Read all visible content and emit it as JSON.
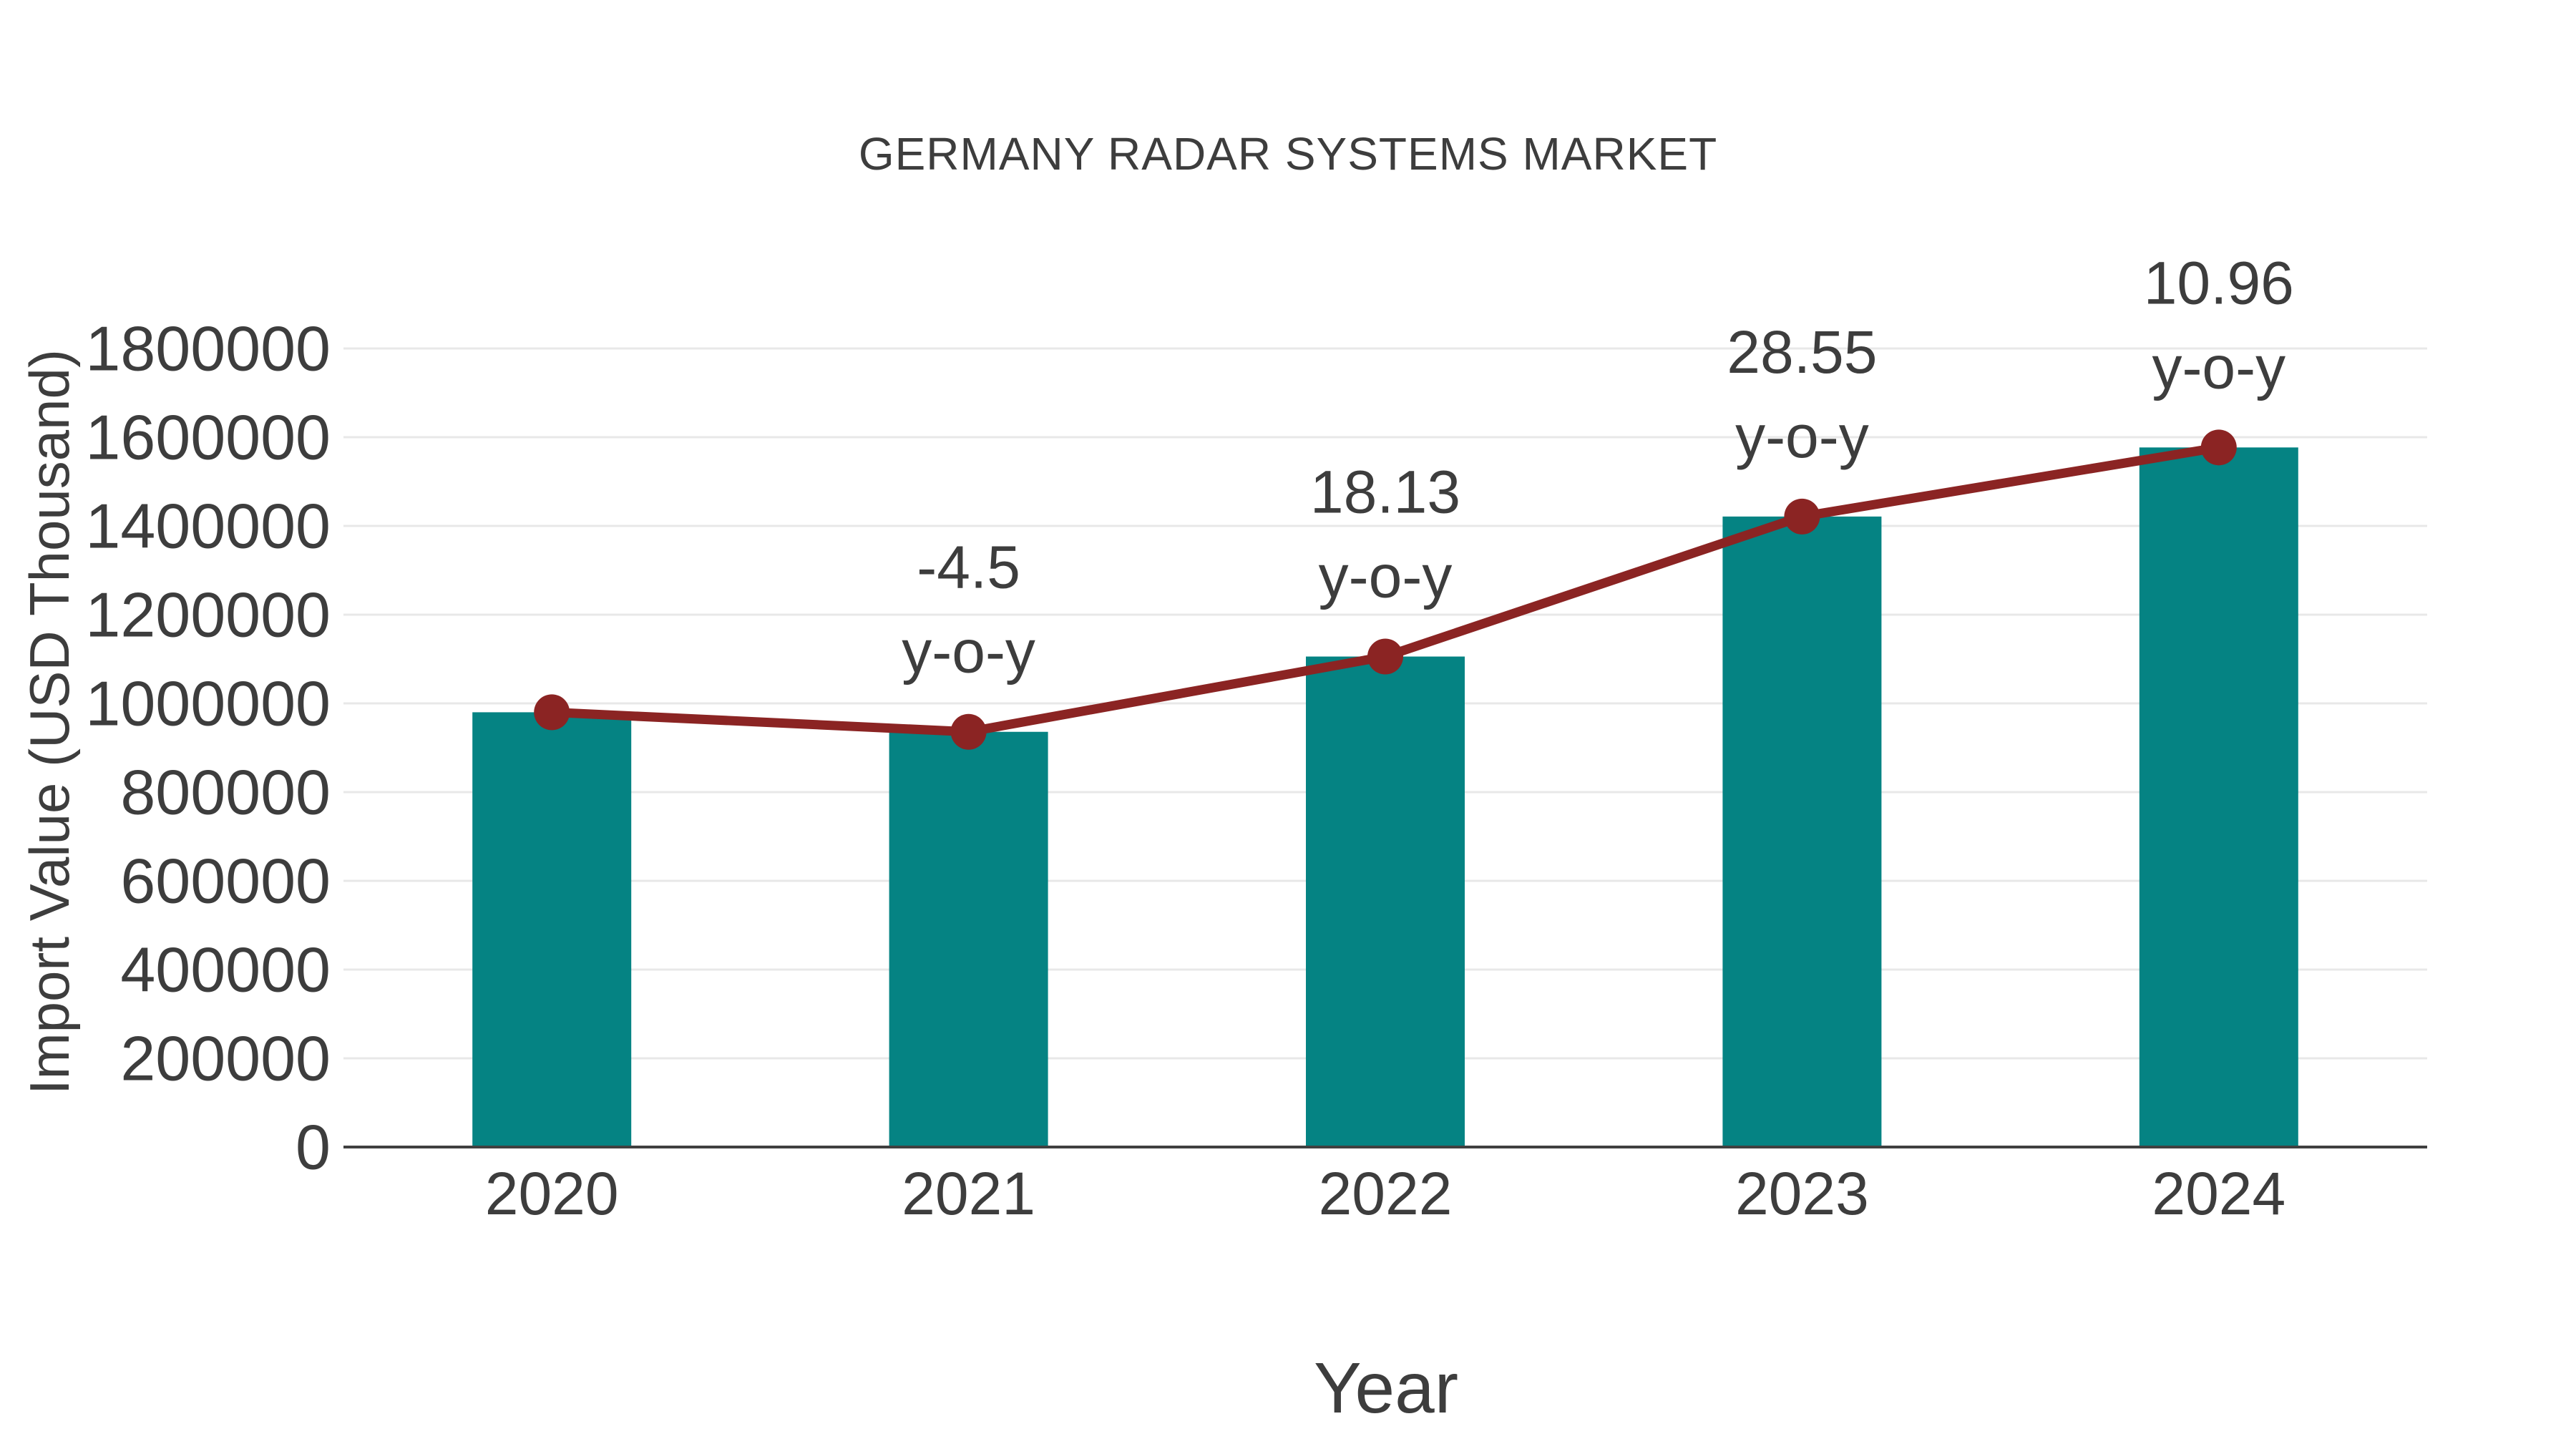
{
  "chart_data": {
    "type": "bar",
    "title": "GERMANY RADAR SYSTEMS MARKET",
    "xlabel": "Year",
    "ylabel": "Import Value (USD Thousand)",
    "categories": [
      "2020",
      "2021",
      "2022",
      "2023",
      "2024"
    ],
    "values": [
      980000,
      935900,
      1105600,
      1421200,
      1576900
    ],
    "line_overlay": {
      "name": "trend-line-with-markers",
      "values": [
        980000,
        935900,
        1105600,
        1421200,
        1576900
      ]
    },
    "yoy_labels": [
      "",
      "-4.5",
      "18.13",
      "28.55",
      "10.96"
    ],
    "yoy_suffix": "y-o-y",
    "ylim": [
      0,
      1800000
    ],
    "yticks": [
      0,
      200000,
      400000,
      600000,
      800000,
      1000000,
      1200000,
      1400000,
      1600000,
      1800000
    ],
    "grid": true,
    "legend": "none",
    "colors": {
      "bar": "#058383",
      "line": "#8b2423",
      "marker": "#8b2423",
      "text": "#3d3d3d",
      "grid": "#e8e8e8",
      "axis": "#404040",
      "background": "#ffffff"
    }
  }
}
